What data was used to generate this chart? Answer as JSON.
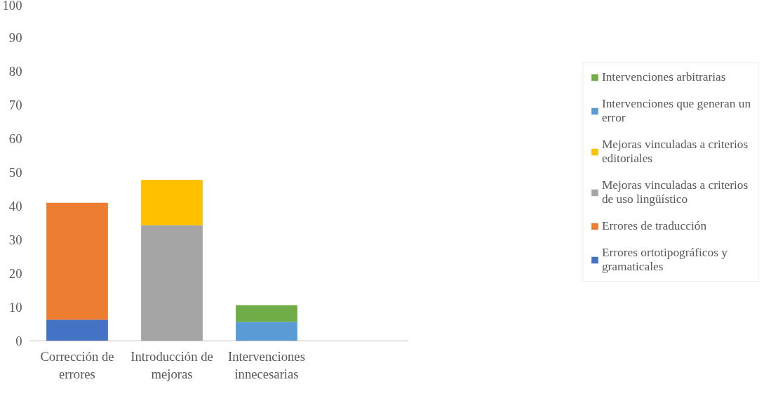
{
  "chart_data": {
    "type": "bar",
    "stacked": true,
    "categories": [
      "Corrección de errores",
      "Introducción de mejoras",
      "Intervenciones innecesarias",
      null
    ],
    "series": [
      {
        "name": "Errores ortotipográficos y gramaticales",
        "color": "#4472c4",
        "values": [
          6.3,
          null,
          null,
          null
        ]
      },
      {
        "name": "Errores de traducción",
        "color": "#ed7d31",
        "values": [
          34.7,
          null,
          null,
          null
        ]
      },
      {
        "name": "Mejoras vinculadas a criterios de uso lingüístico",
        "color": "#a5a5a5",
        "values": [
          null,
          34.3,
          null,
          null
        ]
      },
      {
        "name": "Mejoras vinculadas a criterios editoriales",
        "color": "#ffc000",
        "values": [
          null,
          13.5,
          null,
          null
        ]
      },
      {
        "name": "Intervenciones que generan un error",
        "color": "#5b9bd5",
        "values": [
          null,
          null,
          5.7,
          null
        ]
      },
      {
        "name": "Intervenciones arbitrarias",
        "color": "#70ad47",
        "values": [
          null,
          null,
          4.9,
          null
        ]
      }
    ],
    "ylim": [
      0,
      100
    ],
    "yticks": [
      0,
      10,
      20,
      30,
      40,
      50,
      60,
      70,
      80,
      90,
      100
    ],
    "grid": false,
    "legend": "right"
  }
}
